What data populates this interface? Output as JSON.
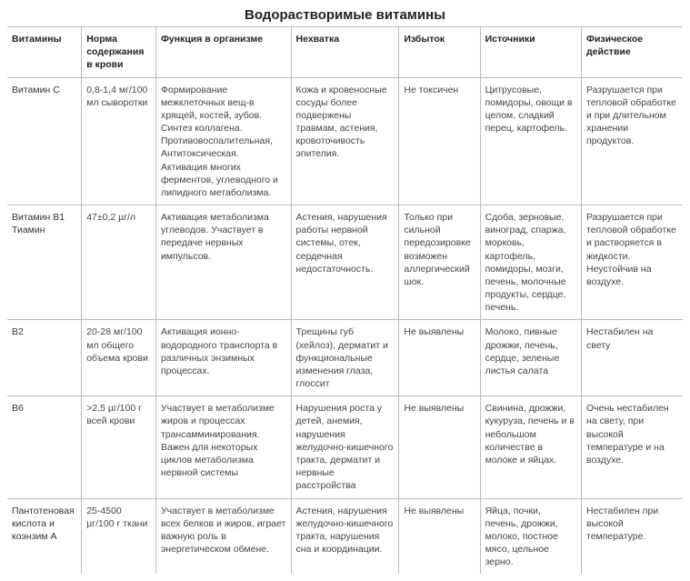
{
  "title": "Водорастворимые витамины",
  "columns": [
    "Витамины",
    "Норма содержания в крови",
    "Функция в организме",
    "Нехватка",
    "Избыток",
    "Источники",
    "Физическое действие"
  ],
  "rows": [
    {
      "c1": "Витамин C",
      "c2": "0,8-1,4 мг/100 мл сыворотки",
      "c3": "Формирование межклеточных вещ-в хрящей, костей, зубов. Синтез коллагена. Противовоспалительная, Антитоксическая. Активация многих ферментов, углеводного и липидного метаболизма.",
      "c4": "Кожа и кровеносные сосуды более подвержены травмам, астения, кровоточивость эпителия.",
      "c5": "Не токсичен",
      "c6": "Цитрусовые, помидоры, овощи в целом, сладкий перец, картофель.",
      "c7": "Разрушается при тепловой обработке и при длительном хранении продуктов."
    },
    {
      "c1": "Витамин B1 Тиамин",
      "c2": "47±0,2 µг/л",
      "c3": "Активация метаболизма углеводов. Участвует в передаче нервных импульсов.",
      "c4": "Астения, нарушения работы нервной системы, отек, сердечная недостаточность.",
      "c5": "Только при сильной передозировке возможен аллергический шок.",
      "c6": "Сдоба, зерновые, виноград, спаржа, морковь, картофель, помидоры, мозги, печень, молочные продукты, сердце, печень.",
      "c7": "Разрушается при тепловой обработке и растворяется в жидкости. Неустойчив на воздухе."
    },
    {
      "c1": "B2",
      "c2": "20-28 мг/100 мл общего объема крови",
      "c3": "Активация ионно-водородного транспорта в различных энзимных процессах.",
      "c4": "Трещины губ (хейлоз), дерматит и функциональные изменения глаза, глоссит",
      "c5": "Не выявлены",
      "c6": "Молоко, пивные дрожжи, печень, сердце, зеленые листья салата",
      "c7": "Нестабилен на свету"
    },
    {
      "c1": "B6",
      "c2": ">2,5 µг/100 г всей крови",
      "c3": "Участвует в метаболизме жиров и процессах трансамминирования. Важен для некоторых циклов метаболизма нервной системы",
      "c4": "Нарушения роста у детей, анемия, нарушения желудочно-кишечного тракта, дерматит и нервные расстройства",
      "c5": "Не выявлены",
      "c6": "Свинина, дрожжи, кукуруза, печень и в небольшом количестве в молоке и яйцах.",
      "c7": "Очень нестабилен на свету, при высокой температуре и на воздухе."
    },
    {
      "c1": "Пантотеновая кислота и коэнзим A",
      "c2": "25-4500 µг/100 г ткани",
      "c3": "Участвует в метаболизме всех белков и жиров, играет важную роль в энергетическом обмене.",
      "c4": "Астения, нарушения желудочно-кишечного тракта, нарушения сна и координации.",
      "c5": "Не выявлены",
      "c6": "Яйца, почки, печень, дрожжи, молоко, постное мясо, цельное зерно.",
      "c7": "Нестабилен при высокой температуре."
    }
  ]
}
